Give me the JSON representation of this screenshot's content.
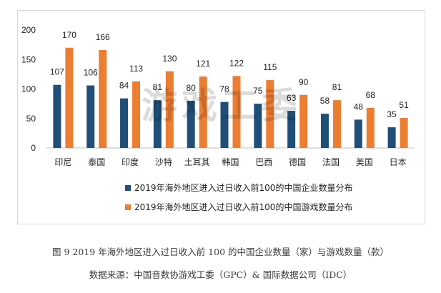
{
  "watermark": "游戏工委",
  "chart_data": {
    "type": "bar",
    "categories": [
      "印尼",
      "泰国",
      "印度",
      "沙特",
      "土耳其",
      "韩国",
      "巴西",
      "德国",
      "法国",
      "美国",
      "日本"
    ],
    "series": [
      {
        "name": "2019年海外地区进入过日收入前100的中国企业数量分布",
        "values": [
          107,
          106,
          84,
          81,
          80,
          78,
          75,
          63,
          58,
          48,
          35
        ],
        "color": "#1f4e79"
      },
      {
        "name": "2019年海外地区进入过日收入前100的中国游戏数量分布",
        "values": [
          170,
          166,
          113,
          130,
          121,
          122,
          115,
          90,
          81,
          68,
          51
        ],
        "color": "#ed7d31"
      }
    ],
    "ylim": [
      0,
      200
    ],
    "yticks": [
      0,
      50,
      100,
      150,
      200
    ],
    "grid": false,
    "legend": "bottom"
  },
  "caption": "图 9  2019 年海外地区进入过日收入前 100 的中国企业数量（家）与游戏数量（款）",
  "source": "数据来源：中国音数协游戏工委（GPC）& 国际数据公司（IDC）"
}
